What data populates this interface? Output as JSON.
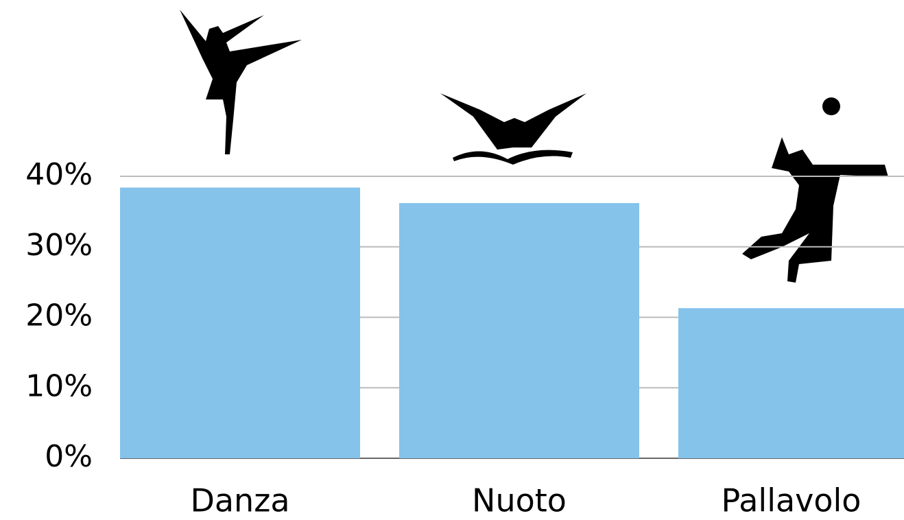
{
  "chart_data": {
    "type": "bar",
    "categories": [
      "Danza",
      "Nuoto",
      "Pallavolo"
    ],
    "values": [
      38.4,
      36.2,
      21.3
    ],
    "color": "#85c3eb",
    "ylim": [
      0,
      40
    ],
    "yticks": [
      {
        "value": 0,
        "label": "0%"
      },
      {
        "value": 10,
        "label": "10%"
      },
      {
        "value": 20,
        "label": "20%"
      },
      {
        "value": 30,
        "label": "30%"
      },
      {
        "value": 40,
        "label": "40%"
      }
    ],
    "grid": true
  }
}
